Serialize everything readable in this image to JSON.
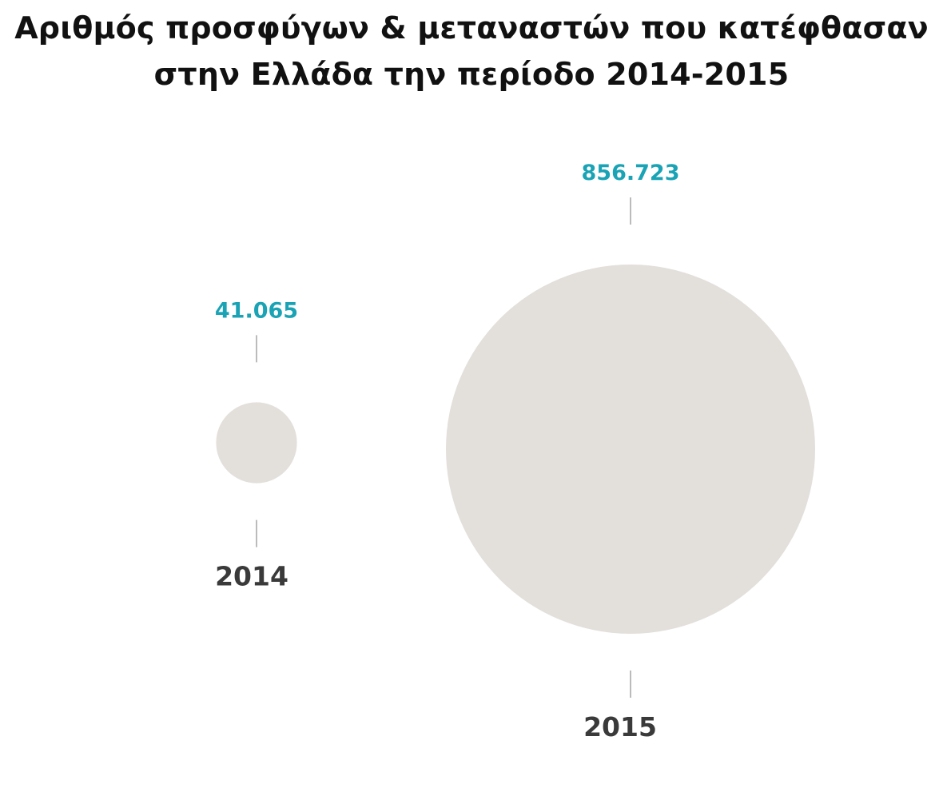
{
  "chart_data": {
    "type": "bubble",
    "title": [
      "Αριθμός προσφύγων & μεταναστών που κατέφθασαν",
      "στην Ελλάδα την περίοδο 2014-2015"
    ],
    "categories": [
      "2014",
      "2015"
    ],
    "values": [
      41065,
      856723
    ],
    "value_labels": [
      "41.065",
      "856.723"
    ],
    "colors": {
      "bubble": "#e3dfdb",
      "value_label": "#1aa3b5",
      "year_label": "#3a3a3a"
    }
  }
}
